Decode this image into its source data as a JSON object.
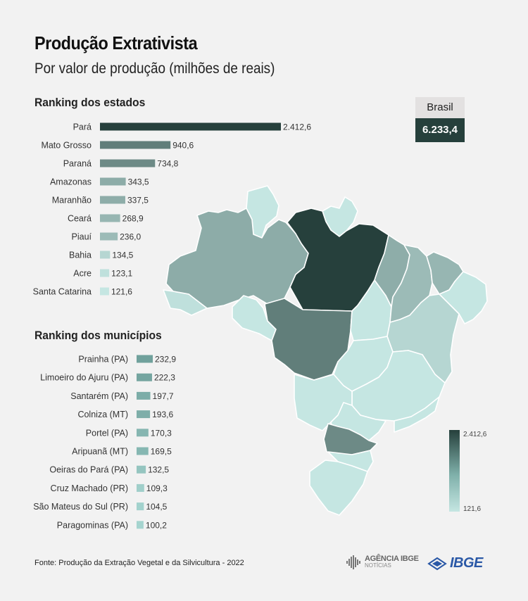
{
  "header": {
    "title": "Produção Extrativista",
    "subtitle": "Por valor de produção (milhões de reais)"
  },
  "brasil": {
    "label": "Brasil",
    "value": "6.233,4"
  },
  "source": "Fonte: Produção da Extração Vegetal e da Silvicultura - 2022",
  "logos": {
    "agencia_line1": "AGÊNCIA IBGE",
    "agencia_line2": "NOTÍCIAS",
    "ibge": "IBGE"
  },
  "colors": {
    "dark": "#26403c",
    "light": "#c5e6e2",
    "background": "#f2f2f2"
  },
  "chart_data": [
    {
      "type": "bar",
      "orientation": "horizontal",
      "title": "Ranking dos estados",
      "categories": [
        "Pará",
        "Mato Grosso",
        "Paraná",
        "Amazonas",
        "Maranhão",
        "Ceará",
        "Piauí",
        "Bahia",
        "Acre",
        "Santa Catarina"
      ],
      "values": [
        2412.6,
        940.6,
        734.8,
        343.5,
        337.5,
        268.9,
        236.0,
        134.5,
        123.1,
        121.6
      ],
      "labels": [
        "2.412,6",
        "940,6",
        "734,8",
        "343,5",
        "337,5",
        "268,9",
        "236,0",
        "134,5",
        "123,1",
        "121,6"
      ]
    },
    {
      "type": "bar",
      "orientation": "horizontal",
      "title": "Ranking dos municípios",
      "categories": [
        "Prainha (PA)",
        "Limoeiro do Ajuru (PA)",
        "Santarém (PA)",
        "Colniza (MT)",
        "Portel (PA)",
        "Aripuanã (MT)",
        "Oeiras do Pará (PA)",
        "Cruz Machado (PR)",
        "São Mateus do Sul (PR)",
        "Paragominas (PA)"
      ],
      "values": [
        232.9,
        222.3,
        197.7,
        193.6,
        170.3,
        169.5,
        132.5,
        109.3,
        104.5,
        100.2
      ],
      "labels": [
        "232,9",
        "222,3",
        "197,7",
        "193,6",
        "170,3",
        "169,5",
        "132,5",
        "109,3",
        "104,5",
        "100,2"
      ]
    }
  ],
  "map": {
    "legend": {
      "max_label": "2.412,6",
      "min_label": "121,6",
      "max": 2412.6,
      "min": 121.6
    },
    "regions": [
      {
        "state": "Roraima",
        "value": 30
      },
      {
        "state": "Amapá",
        "value": 60
      },
      {
        "state": "Amazonas",
        "value": 343.5
      },
      {
        "state": "Pará",
        "value": 2412.6
      },
      {
        "state": "Acre",
        "value": 123.1
      },
      {
        "state": "Rondônia",
        "value": 20
      },
      {
        "state": "Mato Grosso",
        "value": 940.6
      },
      {
        "state": "Tocantins",
        "value": 80
      },
      {
        "state": "Maranhão",
        "value": 337.5
      },
      {
        "state": "Piauí",
        "value": 236.0
      },
      {
        "state": "Ceará",
        "value": 268.9
      },
      {
        "state": "Nordeste litoral",
        "value": 40
      },
      {
        "state": "Bahia",
        "value": 134.5
      },
      {
        "state": "Goiás",
        "value": 30
      },
      {
        "state": "Minas Gerais",
        "value": 20
      },
      {
        "state": "Mato Grosso do Sul",
        "value": 20
      },
      {
        "state": "São Paulo",
        "value": 10
      },
      {
        "state": "Sudeste litoral",
        "value": 10
      },
      {
        "state": "Paraná",
        "value": 734.8
      },
      {
        "state": "Santa Catarina",
        "value": 121.6
      },
      {
        "state": "Rio Grande do Sul",
        "value": 10
      }
    ]
  }
}
